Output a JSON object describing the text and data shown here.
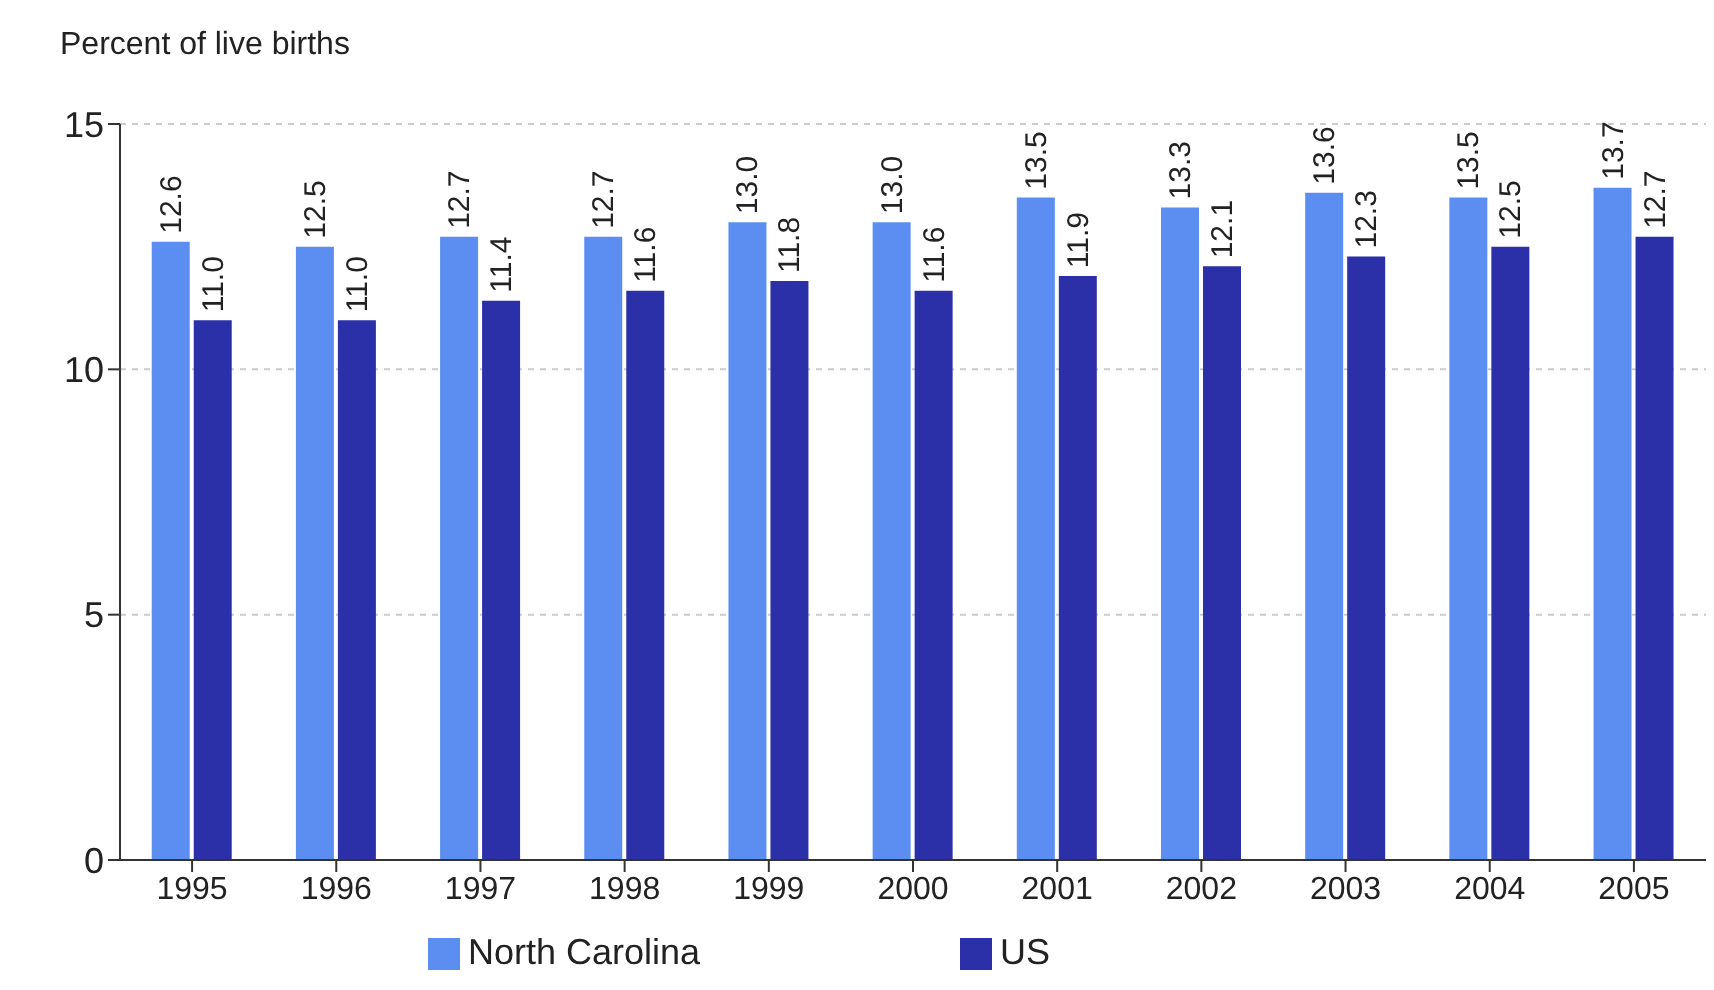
{
  "chart_data": {
    "type": "bar",
    "ylabel": "Percent of live births",
    "categories": [
      "1995",
      "1996",
      "1997",
      "1998",
      "1999",
      "2000",
      "2001",
      "2002",
      "2003",
      "2004",
      "2005"
    ],
    "series": [
      {
        "name": "North Carolina",
        "color": "#5b8ef0",
        "values": [
          12.6,
          12.5,
          12.7,
          12.7,
          13.0,
          13.0,
          13.5,
          13.3,
          13.6,
          13.5,
          13.7
        ],
        "value_labels": [
          "12.6",
          "12.5",
          "12.7",
          "12.7",
          "13.0",
          "13.0",
          "13.5",
          "13.3",
          "13.6",
          "13.5",
          "13.7"
        ]
      },
      {
        "name": "US",
        "color": "#2c30a8",
        "values": [
          11.0,
          11.0,
          11.4,
          11.6,
          11.8,
          11.6,
          11.9,
          12.1,
          12.3,
          12.5,
          12.7
        ],
        "value_labels": [
          "11.0",
          "11.0",
          "11.4",
          "11.6",
          "11.8",
          "11.6",
          "11.9",
          "12.1",
          "12.3",
          "12.5",
          "12.7"
        ]
      }
    ],
    "ylim": [
      0,
      15
    ],
    "yticks": [
      0,
      5,
      10,
      15
    ],
    "grid": "y",
    "legend": "bottom"
  }
}
